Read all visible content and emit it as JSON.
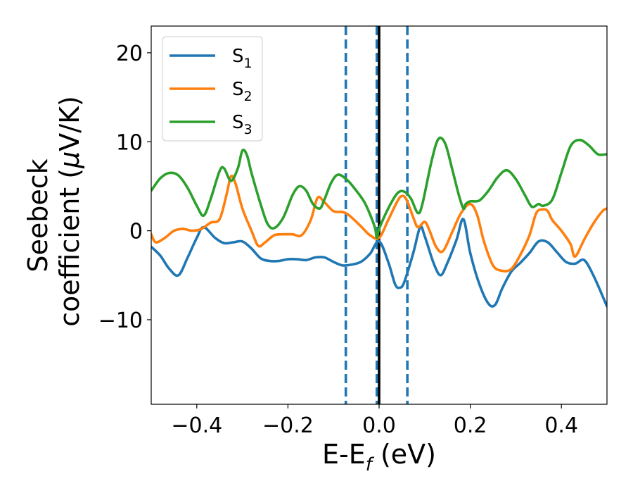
{
  "chart_data": {
    "type": "line",
    "xlabel": {
      "main": "E-E",
      "sub": "f",
      "unit": " (eV)"
    },
    "ylabel": {
      "line1": "Seebeck",
      "line2_text": "coefficient  (",
      "line2_mu": "μ",
      "line2_unit": "V/K)"
    },
    "xlim": [
      -0.5,
      0.5
    ],
    "ylim": [
      -19.5,
      23
    ],
    "xticks": [
      -0.4,
      -0.2,
      0.0,
      0.2,
      0.4
    ],
    "xtick_labels": [
      "−0.4",
      "−0.2",
      "0.0",
      "0.2",
      "0.4"
    ],
    "yticks": [
      -10,
      0,
      10,
      20
    ],
    "ytick_labels": [
      "−10",
      "0",
      "10",
      "20"
    ],
    "grid": false,
    "legend_position": "top-left",
    "vlines": [
      {
        "x": -0.073,
        "style": "dashed",
        "color": "#1f77b4"
      },
      {
        "x": -0.005,
        "style": "dashed",
        "color": "#1f77b4"
      },
      {
        "x": 0.062,
        "style": "dashed",
        "color": "#1f77b4"
      },
      {
        "x": 0.0,
        "style": "solid",
        "color": "#000000"
      }
    ],
    "series": [
      {
        "name": "S",
        "sub": "1",
        "color": "#1f77b4",
        "points": [
          [
            -0.5,
            -1.8
          ],
          [
            -0.48,
            -2.8
          ],
          [
            -0.46,
            -4.3
          ],
          [
            -0.44,
            -5.0
          ],
          [
            -0.42,
            -3.0
          ],
          [
            -0.4,
            -0.8
          ],
          [
            -0.385,
            0.4
          ],
          [
            -0.36,
            -0.8
          ],
          [
            -0.34,
            -1.4
          ],
          [
            -0.32,
            -1.3
          ],
          [
            -0.3,
            -1.2
          ],
          [
            -0.28,
            -2.0
          ],
          [
            -0.26,
            -3.1
          ],
          [
            -0.24,
            -3.4
          ],
          [
            -0.22,
            -3.4
          ],
          [
            -0.2,
            -3.2
          ],
          [
            -0.18,
            -3.2
          ],
          [
            -0.16,
            -3.3
          ],
          [
            -0.14,
            -3.0
          ],
          [
            -0.12,
            -3.0
          ],
          [
            -0.1,
            -3.5
          ],
          [
            -0.08,
            -3.9
          ],
          [
            -0.06,
            -3.8
          ],
          [
            -0.04,
            -3.5
          ],
          [
            -0.02,
            -2.6
          ],
          [
            0.0,
            -1.2
          ],
          [
            0.02,
            -3.5
          ],
          [
            0.035,
            -6.0
          ],
          [
            0.045,
            -6.4
          ],
          [
            0.055,
            -5.8
          ],
          [
            0.075,
            -2.5
          ],
          [
            0.09,
            0.4
          ],
          [
            0.1,
            -0.6
          ],
          [
            0.12,
            -3.7
          ],
          [
            0.135,
            -5.0
          ],
          [
            0.15,
            -3.6
          ],
          [
            0.17,
            -1.0
          ],
          [
            0.185,
            1.3
          ],
          [
            0.2,
            -2.5
          ],
          [
            0.22,
            -6.0
          ],
          [
            0.24,
            -8.2
          ],
          [
            0.255,
            -8.3
          ],
          [
            0.27,
            -6.5
          ],
          [
            0.29,
            -4.6
          ],
          [
            0.31,
            -3.6
          ],
          [
            0.33,
            -2.5
          ],
          [
            0.35,
            -1.2
          ],
          [
            0.37,
            -1.3
          ],
          [
            0.39,
            -2.4
          ],
          [
            0.41,
            -3.5
          ],
          [
            0.43,
            -3.7
          ],
          [
            0.45,
            -3.3
          ],
          [
            0.47,
            -5.0
          ],
          [
            0.49,
            -7.3
          ],
          [
            0.5,
            -8.5
          ]
        ]
      },
      {
        "name": "S",
        "sub": "2",
        "color": "#ff7f0e",
        "points": [
          [
            -0.5,
            -0.4
          ],
          [
            -0.49,
            -1.3
          ],
          [
            -0.47,
            -0.8
          ],
          [
            -0.45,
            0.0
          ],
          [
            -0.43,
            0.2
          ],
          [
            -0.41,
            0.0
          ],
          [
            -0.39,
            0.2
          ],
          [
            -0.37,
            0.9
          ],
          [
            -0.35,
            1.3
          ],
          [
            -0.335,
            4.0
          ],
          [
            -0.325,
            6.1
          ],
          [
            -0.315,
            5.3
          ],
          [
            -0.3,
            2.5
          ],
          [
            -0.28,
            0.0
          ],
          [
            -0.265,
            -1.7
          ],
          [
            -0.25,
            -1.3
          ],
          [
            -0.23,
            -0.5
          ],
          [
            -0.21,
            -0.4
          ],
          [
            -0.19,
            -0.4
          ],
          [
            -0.17,
            -0.5
          ],
          [
            -0.15,
            1.2
          ],
          [
            -0.135,
            3.7
          ],
          [
            -0.12,
            3.2
          ],
          [
            -0.1,
            2.2
          ],
          [
            -0.08,
            2.1
          ],
          [
            -0.065,
            1.7
          ],
          [
            -0.04,
            0.5
          ],
          [
            -0.02,
            -0.5
          ],
          [
            0.0,
            -0.8
          ],
          [
            0.02,
            1.2
          ],
          [
            0.04,
            3.3
          ],
          [
            0.05,
            3.9
          ],
          [
            0.06,
            3.5
          ],
          [
            0.075,
            1.5
          ],
          [
            0.085,
            0.4
          ],
          [
            0.1,
            1.0
          ],
          [
            0.11,
            0.1
          ],
          [
            0.125,
            -1.8
          ],
          [
            0.14,
            -2.3
          ],
          [
            0.16,
            -0.2
          ],
          [
            0.18,
            2.0
          ],
          [
            0.2,
            3.0
          ],
          [
            0.215,
            1.8
          ],
          [
            0.23,
            -1.2
          ],
          [
            0.25,
            -3.9
          ],
          [
            0.27,
            -4.5
          ],
          [
            0.29,
            -4.3
          ],
          [
            0.31,
            -2.7
          ],
          [
            0.33,
            -0.5
          ],
          [
            0.345,
            2.0
          ],
          [
            0.36,
            2.4
          ],
          [
            0.37,
            2.2
          ],
          [
            0.38,
            1.2
          ],
          [
            0.4,
            0.0
          ],
          [
            0.42,
            -1.5
          ],
          [
            0.43,
            -2.9
          ],
          [
            0.45,
            -1.0
          ],
          [
            0.47,
            0.8
          ],
          [
            0.49,
            2.2
          ],
          [
            0.5,
            2.5
          ]
        ]
      },
      {
        "name": "S",
        "sub": "3",
        "color": "#2ca02c",
        "points": [
          [
            -0.5,
            4.5
          ],
          [
            -0.48,
            5.9
          ],
          [
            -0.46,
            6.5
          ],
          [
            -0.44,
            6.2
          ],
          [
            -0.42,
            4.8
          ],
          [
            -0.4,
            2.8
          ],
          [
            -0.385,
            1.7
          ],
          [
            -0.37,
            3.5
          ],
          [
            -0.35,
            6.7
          ],
          [
            -0.34,
            7.0
          ],
          [
            -0.325,
            5.6
          ],
          [
            -0.31,
            7.0
          ],
          [
            -0.3,
            9.0
          ],
          [
            -0.29,
            8.5
          ],
          [
            -0.28,
            6.5
          ],
          [
            -0.26,
            3.0
          ],
          [
            -0.245,
            0.8
          ],
          [
            -0.23,
            0.3
          ],
          [
            -0.21,
            1.5
          ],
          [
            -0.19,
            4.0
          ],
          [
            -0.175,
            5.0
          ],
          [
            -0.16,
            4.5
          ],
          [
            -0.145,
            3.0
          ],
          [
            -0.13,
            2.5
          ],
          [
            -0.12,
            3.5
          ],
          [
            -0.105,
            5.4
          ],
          [
            -0.09,
            6.3
          ],
          [
            -0.07,
            5.7
          ],
          [
            -0.05,
            4.5
          ],
          [
            -0.03,
            3.0
          ],
          [
            -0.01,
            0.5
          ],
          [
            -0.005,
            -0.8
          ],
          [
            0.0,
            0.2
          ],
          [
            0.02,
            2.5
          ],
          [
            0.04,
            4.2
          ],
          [
            0.055,
            4.4
          ],
          [
            0.07,
            3.6
          ],
          [
            0.085,
            2.0
          ],
          [
            0.095,
            3.0
          ],
          [
            0.115,
            7.8
          ],
          [
            0.13,
            10.3
          ],
          [
            0.145,
            9.8
          ],
          [
            0.16,
            7.0
          ],
          [
            0.175,
            4.0
          ],
          [
            0.185,
            2.5
          ],
          [
            0.19,
            3.0
          ],
          [
            0.2,
            3.3
          ],
          [
            0.22,
            3.4
          ],
          [
            0.24,
            4.5
          ],
          [
            0.26,
            6.0
          ],
          [
            0.28,
            6.8
          ],
          [
            0.3,
            5.8
          ],
          [
            0.32,
            4.0
          ],
          [
            0.335,
            2.7
          ],
          [
            0.35,
            3.0
          ],
          [
            0.36,
            2.8
          ],
          [
            0.38,
            3.5
          ],
          [
            0.4,
            6.5
          ],
          [
            0.42,
            9.5
          ],
          [
            0.44,
            10.2
          ],
          [
            0.46,
            9.6
          ],
          [
            0.48,
            8.6
          ],
          [
            0.5,
            8.6
          ]
        ]
      }
    ]
  }
}
